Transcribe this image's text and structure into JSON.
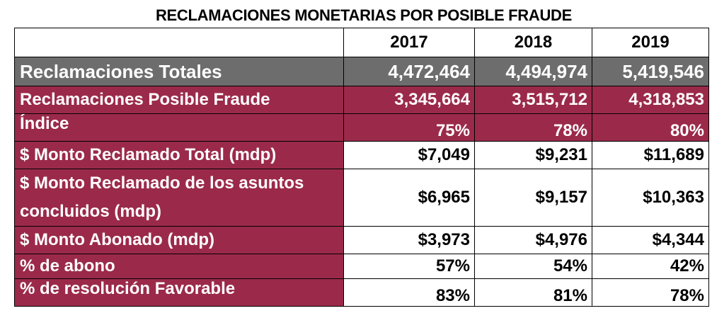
{
  "title": "RECLAMACIONES MONETARIAS POR POSIBLE FRAUDE",
  "columns": [
    "",
    "2017",
    "2018",
    "2019"
  ],
  "rows": [
    {
      "label": "Reclamaciones Totales",
      "values": [
        "4,472,464",
        "4,494,974",
        "5,419,546"
      ]
    },
    {
      "label": "Reclamaciones Posible Fraude",
      "values": [
        "3,345,664",
        "3,515,712",
        "4,318,853"
      ]
    },
    {
      "label": "Índice",
      "values": [
        "75%",
        "78%",
        "80%"
      ]
    },
    {
      "label": "$ Monto Reclamado Total (mdp)",
      "values": [
        "$7,049",
        "$9,231",
        "$11,689"
      ]
    },
    {
      "label": "$ Monto Reclamado de los asuntos concluidos (mdp)",
      "values": [
        "$6,965",
        "$9,157",
        "$10,363"
      ]
    },
    {
      "label": "$ Monto Abonado (mdp)",
      "values": [
        "$3,973",
        "$4,976",
        "$4,344"
      ]
    },
    {
      "label": "% de abono",
      "values": [
        "57%",
        "54%",
        "42%"
      ]
    },
    {
      "label": "% de resolución Favorable",
      "values": [
        "83%",
        "81%",
        "78%"
      ]
    }
  ],
  "colors": {
    "wine": "#9b2a4a",
    "gray": "#6d6d6d",
    "white": "#ffffff"
  }
}
